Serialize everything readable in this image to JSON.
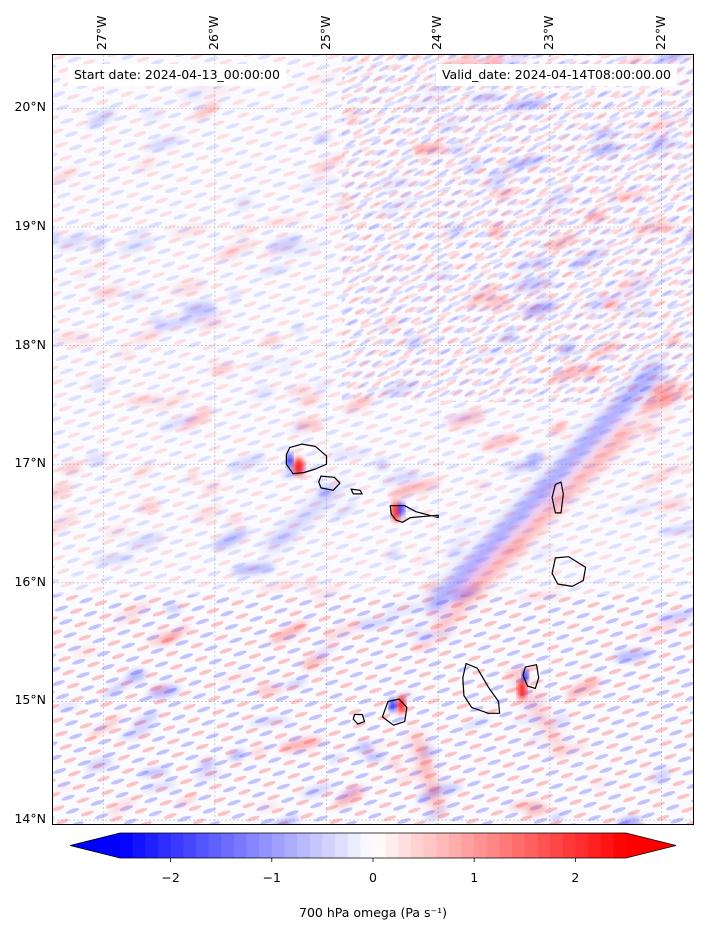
{
  "map": {
    "start_label": "Start date: 2024-04-13_00:00:00",
    "valid_label": "Valid_date: 2024-04-14T08:00:00.00",
    "lon_ticks": [
      {
        "value": -27,
        "label": "27°W"
      },
      {
        "value": -26,
        "label": "26°W"
      },
      {
        "value": -25,
        "label": "25°W"
      },
      {
        "value": -24,
        "label": "24°W"
      },
      {
        "value": -23,
        "label": "23°W"
      },
      {
        "value": -22,
        "label": "22°W"
      }
    ],
    "lat_ticks": [
      {
        "value": 20,
        "label": "20°N"
      },
      {
        "value": 19,
        "label": "19°N"
      },
      {
        "value": 18,
        "label": "18°N"
      },
      {
        "value": 17,
        "label": "17°N"
      },
      {
        "value": 16,
        "label": "16°N"
      },
      {
        "value": 15,
        "label": "15°N"
      },
      {
        "value": 14,
        "label": "14°N"
      }
    ],
    "lon_range": [
      -27.45,
      -21.7
    ],
    "lat_range": [
      13.95,
      20.45
    ],
    "field": "700 hPa omega",
    "islands": [
      "Santo Antão",
      "São Vicente",
      "Santa Luzia",
      "São Nicolau",
      "Sal",
      "Boa Vista",
      "Santiago",
      "Fogo",
      "Brava",
      "Maio"
    ]
  },
  "colorbar": {
    "ticks": [
      {
        "value": -2,
        "label": "−2"
      },
      {
        "value": -1,
        "label": "−1"
      },
      {
        "value": 0,
        "label": "0"
      },
      {
        "value": 1,
        "label": "1"
      },
      {
        "value": 2,
        "label": "2"
      }
    ],
    "range": [
      -2.5,
      2.5
    ],
    "title": "700 hPa omega (Pa s⁻¹)",
    "negative_color": "#0000ff",
    "positive_color": "#ff0000",
    "extend": "both"
  }
}
